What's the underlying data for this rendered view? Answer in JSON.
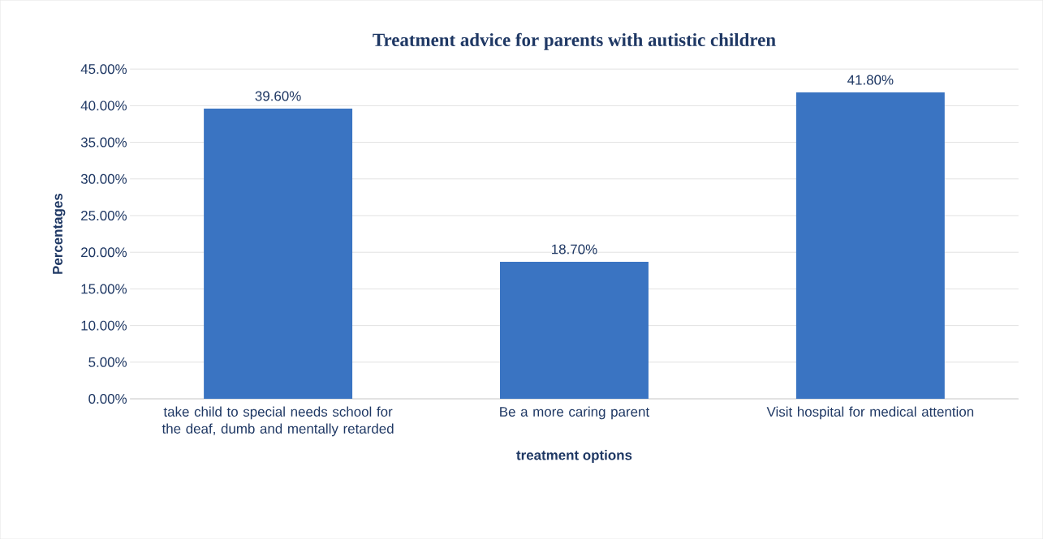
{
  "chart_data": {
    "type": "bar",
    "title": "Treatment advice for parents with autistic children",
    "xlabel": "treatment options",
    "ylabel": "Percentages",
    "categories": [
      "take child to special needs school for the deaf, dumb and mentally retarded",
      "Be a more caring parent",
      "Visit hospital for medical attention"
    ],
    "values": [
      39.6,
      18.7,
      41.8
    ],
    "value_labels": [
      "39.60%",
      "18.70%",
      "41.80%"
    ],
    "color": "#3a74c2",
    "ylim": [
      0,
      45
    ],
    "yticks": [
      {
        "value": 0,
        "label": "0.00%"
      },
      {
        "value": 5,
        "label": "5.00%"
      },
      {
        "value": 10,
        "label": "10.00%"
      },
      {
        "value": 15,
        "label": "15.00%"
      },
      {
        "value": 20,
        "label": "20.00%"
      },
      {
        "value": 25,
        "label": "25.00%"
      },
      {
        "value": 30,
        "label": "30.00%"
      },
      {
        "value": 35,
        "label": "35.00%"
      },
      {
        "value": 40,
        "label": "40.00%"
      },
      {
        "value": 45,
        "label": "45.00%"
      }
    ],
    "grid": "y"
  }
}
